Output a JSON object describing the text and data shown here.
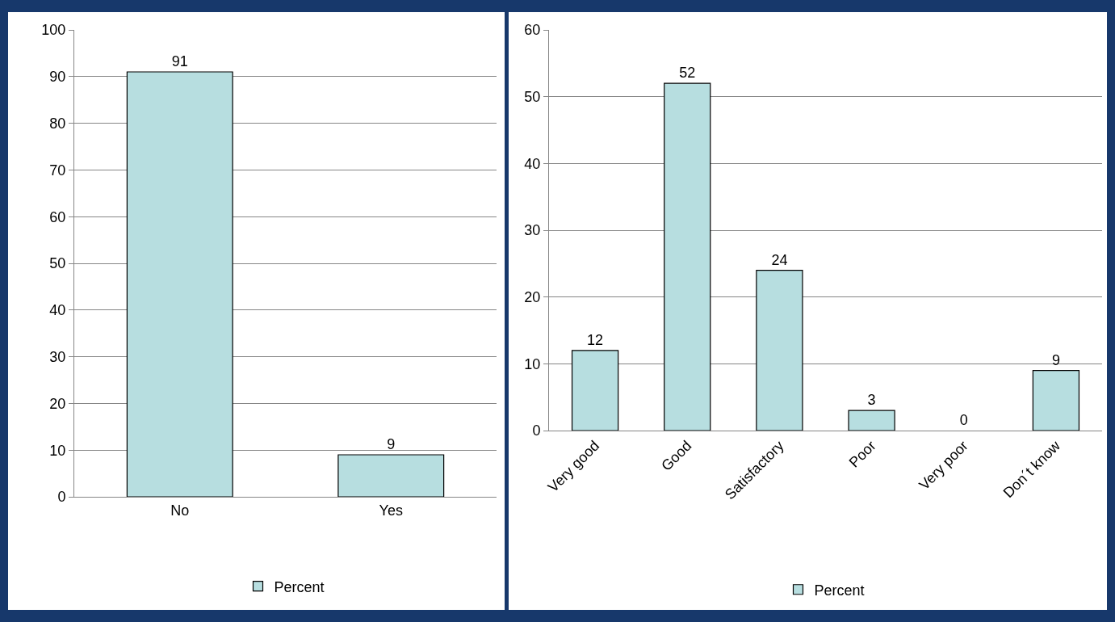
{
  "chart_data": [
    {
      "type": "bar",
      "categories": [
        "No",
        "Yes"
      ],
      "series": [
        {
          "name": "Percent",
          "color": "#b7dee0",
          "values": [
            91,
            9
          ]
        }
      ],
      "ylim": [
        0,
        100
      ],
      "yticks": [
        0,
        10,
        20,
        30,
        40,
        50,
        60,
        70,
        80,
        90,
        100
      ],
      "grid": "y",
      "legend": "bottom",
      "data_labels": true
    },
    {
      "type": "bar",
      "categories": [
        "Very good",
        "Good",
        "Satisfactory",
        "Poor",
        "Very poor",
        "Don´t know"
      ],
      "series": [
        {
          "name": "Percent",
          "color": "#b7dee0",
          "values": [
            12,
            52,
            24,
            3,
            0,
            9
          ]
        }
      ],
      "ylim": [
        0,
        60
      ],
      "yticks": [
        0,
        10,
        20,
        30,
        40,
        50,
        60
      ],
      "grid": "y",
      "legend": "bottom",
      "data_labels": true
    }
  ]
}
